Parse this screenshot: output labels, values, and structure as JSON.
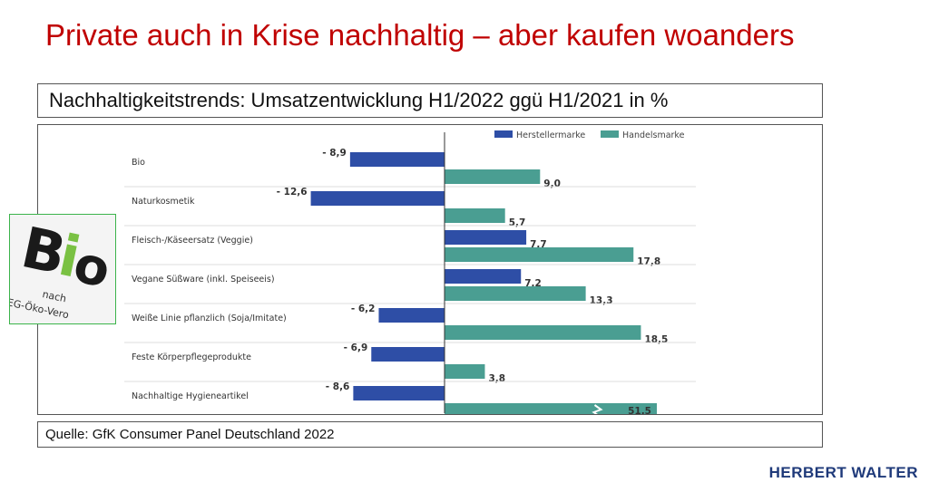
{
  "slide": {
    "title": "Private auch in Krise nachhaltig – aber kaufen woanders",
    "subtitle": "Nachhaltigkeitstrends: Umsatzentwicklung H1/2022 ggü H1/2021 in %",
    "source": "Quelle: GfK Consumer Panel Deutschland 2022",
    "brand": "HERBERT WALTER",
    "logo": {
      "word": "Bio",
      "caption1": "nach",
      "caption2": "EG-Öko-Vero",
      "colors": {
        "green": "#7ac143",
        "black": "#1a1a1a"
      }
    }
  },
  "colors": {
    "herstellermarke": "#2e4ea6",
    "handelsmarke": "#4a9e92",
    "axis": "#333333",
    "grid": "#dddddd"
  },
  "chart_data": {
    "type": "bar",
    "orientation": "horizontal",
    "categories": [
      "Bio",
      "Naturkosmetik",
      "Fleisch-/Käseersatz (Veggie)",
      "Vegane Süßware (inkl. Speiseeis)",
      "Weiße Linie pflanzlich (Soja/Imitate)",
      "Feste Körperpflegeprodukte",
      "Nachhaltige Hygieneartikel"
    ],
    "series": [
      {
        "name": "Herstellermarke",
        "values": [
          -8.9,
          -12.6,
          7.7,
          7.2,
          -6.2,
          -6.9,
          -8.6
        ],
        "labels": [
          "- 8,9",
          "- 12,6",
          "7,7",
          "7,2",
          "- 6,2",
          "- 6,9",
          "- 8,6"
        ]
      },
      {
        "name": "Handelsmarke",
        "values": [
          9.0,
          5.7,
          17.8,
          13.3,
          18.5,
          3.8,
          51.5
        ],
        "labels": [
          "9,0",
          "5,7",
          "17,8",
          "13,3",
          "18,5",
          "3,8",
          "51,5"
        ]
      }
    ],
    "axis_break_on": "Nachhaltige Hygieneartikel / Handelsmarke",
    "legend": "top-right",
    "title": "",
    "xlabel": "",
    "ylabel": ""
  }
}
